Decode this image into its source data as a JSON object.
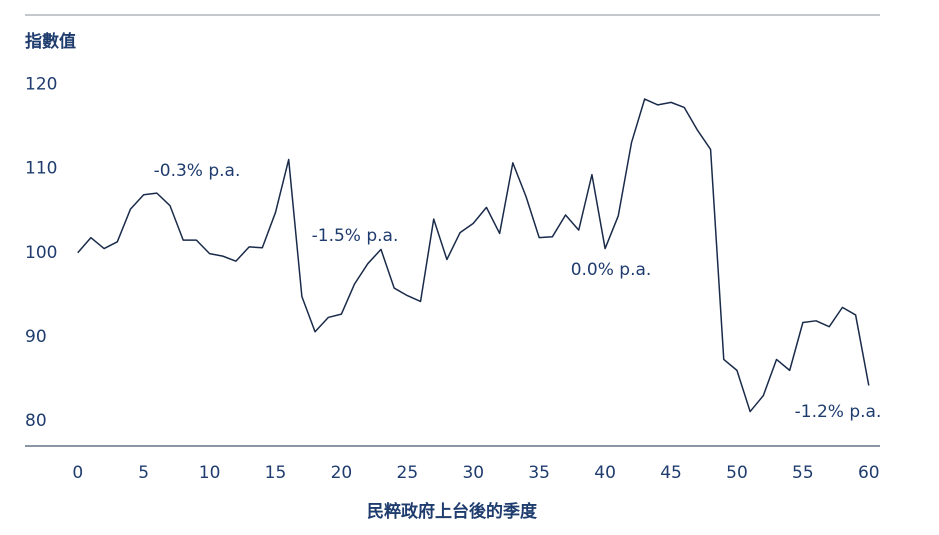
{
  "chart_data": {
    "type": "line",
    "y_axis_label": "指數值",
    "x_axis_label": "民粹政府上台後的季度",
    "x": [
      0,
      1,
      2,
      3,
      4,
      5,
      6,
      7,
      8,
      9,
      10,
      11,
      12,
      13,
      14,
      15,
      16,
      17,
      18,
      19,
      20,
      21,
      22,
      23,
      24,
      25,
      26,
      27,
      28,
      29,
      30,
      31,
      32,
      33,
      34,
      35,
      36,
      37,
      38,
      39,
      40,
      41,
      42,
      43,
      44,
      45,
      46,
      47,
      48,
      49,
      50,
      51,
      52,
      53,
      54,
      55,
      56,
      57,
      58,
      59,
      60
    ],
    "series": [
      {
        "color": "#1a2b4a",
        "values": [
          100,
          101.8,
          100.5,
          101.3,
          105.2,
          106.9,
          107.1,
          105.6,
          101.5,
          101.5,
          99.9,
          99.6,
          99.0,
          100.7,
          100.6,
          104.8,
          111.1,
          94.8,
          90.6,
          92.3,
          92.7,
          96.3,
          98.7,
          100.4,
          95.8,
          94.9,
          94.2,
          104.0,
          99.2,
          102.4,
          103.5,
          105.4,
          102.3,
          110.7,
          106.7,
          101.8,
          101.9,
          104.5,
          102.7,
          109.3,
          100.5,
          104.4,
          113.1,
          118.3,
          117.6,
          117.9,
          117.3,
          114.6,
          112.3,
          87.3,
          86.0,
          81.1,
          83.0,
          87.3,
          86.0,
          91.7,
          91.9,
          91.2,
          93.5,
          92.6,
          84.2
        ]
      }
    ],
    "annotations": [
      "-0.3% p.a.",
      "-1.5% p.a.",
      "0.0% p.a.",
      "-1.2% p.a."
    ],
    "xlim": [
      -4,
      60.85
    ],
    "xticks": [
      0,
      5,
      10,
      15,
      20,
      25,
      30,
      35,
      40,
      45,
      50,
      55,
      60
    ],
    "ylim": [
      77,
      128.3
    ],
    "yticks": [
      80,
      90,
      100,
      110,
      120
    ],
    "grid": false
  }
}
